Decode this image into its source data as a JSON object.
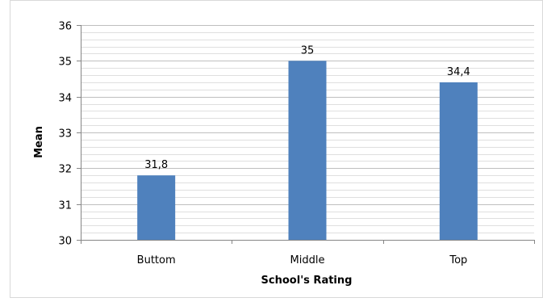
{
  "chart_data": {
    "type": "bar",
    "categories": [
      "Buttom",
      "Middle",
      "Top"
    ],
    "values": [
      31.8,
      35,
      34.4
    ],
    "data_labels": [
      "31,8",
      "35",
      "34,4"
    ],
    "title": "",
    "xlabel": "School's Rating",
    "ylabel": "Mean",
    "ylim": [
      30,
      36
    ],
    "yticks": [
      "30",
      "31",
      "32",
      "33",
      "34",
      "35",
      "36"
    ],
    "grid": true,
    "legend": "none",
    "bar_color": "#4F81BD",
    "grid_color": "#BFBFBF",
    "axis_color": "#868686"
  }
}
